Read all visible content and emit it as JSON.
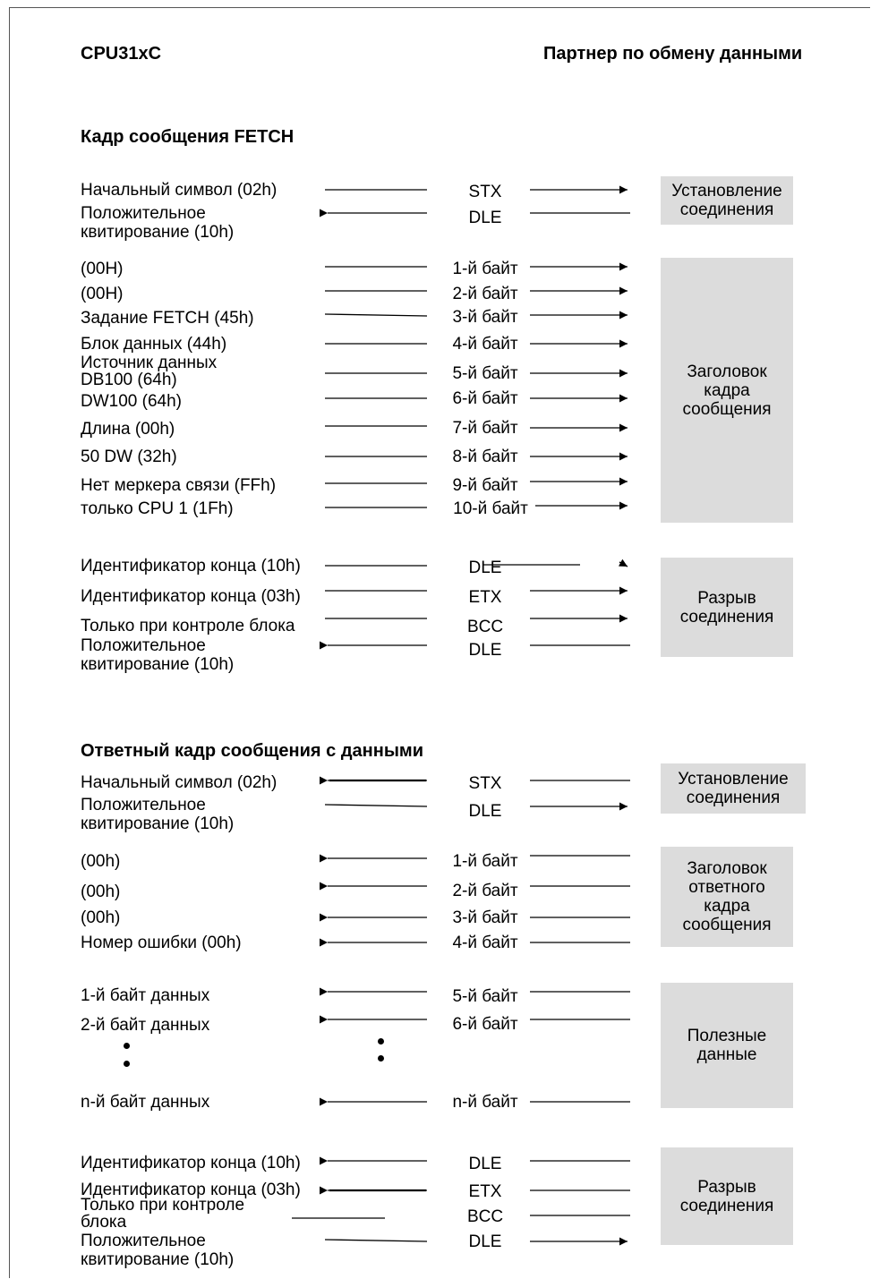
{
  "header": {
    "left": "CPU31xC",
    "right": "Партнер по обмену данными"
  },
  "fetch": {
    "title": "Кадр сообщения FETCH",
    "rows": [
      {
        "label": "Начальный символ (02h)",
        "code": "STX"
      },
      {
        "label": "Положительное\nквитирование (10h)",
        "code": "DLE"
      },
      {
        "label": "(00H)",
        "code": "1-й байт"
      },
      {
        "label": "(00H)",
        "code": "2-й байт"
      },
      {
        "label": "Задание FETCH (45h)",
        "code": "3-й байт"
      },
      {
        "label": "Блок данных (44h)",
        "code": "4-й байт"
      },
      {
        "label": "Источник данных\nDB100 (64h)",
        "code": "5-й байт"
      },
      {
        "label": "DW100 (64h)",
        "code": "6-й байт"
      },
      {
        "label": "Длина (00h)",
        "code": "7-й байт"
      },
      {
        "label": "50 DW (32h)",
        "code": "8-й байт"
      },
      {
        "label": "Нет меркера связи (FFh)",
        "code": "9-й байт"
      },
      {
        "label": "только CPU 1 (1Fh)",
        "code": "10-й байт"
      },
      {
        "label": "Идентификатор конца (10h)",
        "code": "DLE"
      },
      {
        "label": "Идентификатор конца (03h)",
        "code": "ETX"
      },
      {
        "label": "Только при контроле блока",
        "code": "BCC"
      },
      {
        "label": "Положительное\nквитирование (10h)",
        "code": "DLE"
      }
    ],
    "boxes": [
      "Установление\nсоединения",
      "Заголовок\nкадра\nсообщения",
      "Разрыв\nсоединения"
    ]
  },
  "reply": {
    "title": "Ответный кадр сообщения с данными",
    "rows": [
      {
        "label": "Начальный символ (02h)",
        "code": "STX"
      },
      {
        "label": "Положительное\nквитирование (10h)",
        "code": "DLE"
      },
      {
        "label": "(00h)",
        "code": "1-й байт"
      },
      {
        "label": "(00h)",
        "code": "2-й байт"
      },
      {
        "label": "(00h)",
        "code": "3-й байт"
      },
      {
        "label": "Номер ошибки (00h)",
        "code": "4-й байт"
      },
      {
        "label": "1-й байт данных",
        "code": "5-й байт"
      },
      {
        "label": "2-й байт данных",
        "code": "6-й байт"
      },
      {
        "label": "n-й байт данных",
        "code": "n-й байт"
      },
      {
        "label": "Идентификатор конца (10h)",
        "code": "DLE"
      },
      {
        "label": "Идентификатор конца (03h)",
        "code": "ETX"
      },
      {
        "label": "Только при контроле\nблока",
        "code": "BCC"
      },
      {
        "label": "Положительное\nквитирование (10h)",
        "code": "DLE"
      }
    ],
    "boxes": [
      "Установление\nсоединения",
      "Заголовок\nответного\nкадра\nсообщения",
      "Полезные\nданные",
      "Разрыв\nсоединения"
    ]
  }
}
